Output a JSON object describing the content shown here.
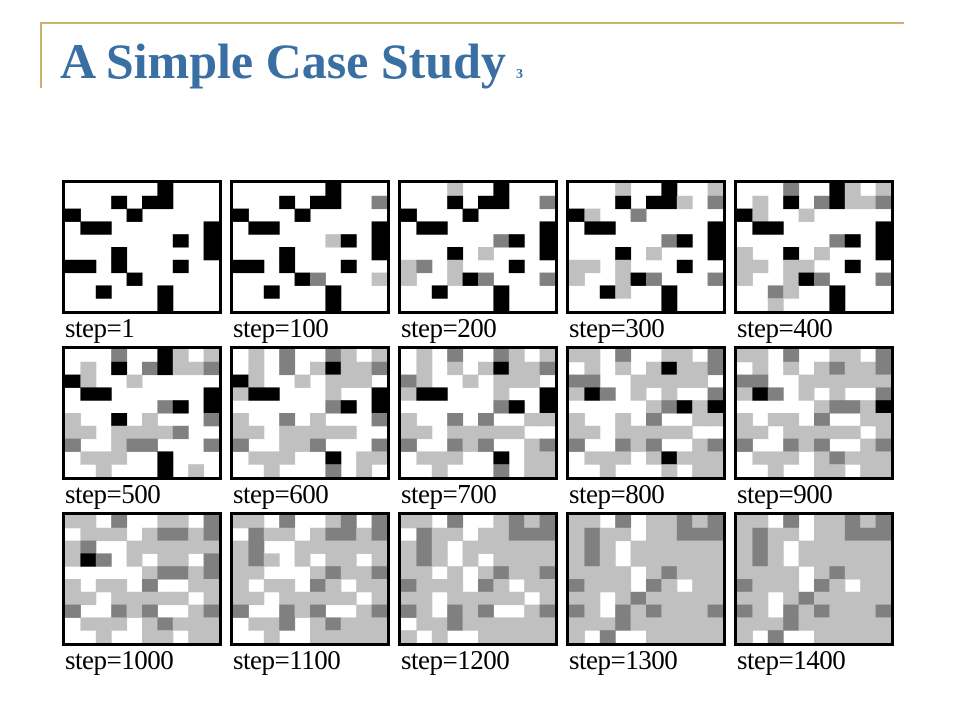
{
  "slide": {
    "title": "A Simple Case Study",
    "title_number": "3"
  },
  "figure": {
    "grid_size": 10,
    "colors": {
      "white": "#ffffff",
      "light": "#c0c0c0",
      "dark": "#808080",
      "black": "#000000",
      "border": "#000000"
    },
    "panels": [
      {
        "label": "step=1"
      },
      {
        "label": "step=100"
      },
      {
        "label": "step=200"
      },
      {
        "label": "step=300"
      },
      {
        "label": "step=400"
      },
      {
        "label": "step=500"
      },
      {
        "label": "step=600"
      },
      {
        "label": "step=700"
      },
      {
        "label": "step=800"
      },
      {
        "label": "step=900"
      },
      {
        "label": "step=1000"
      },
      {
        "label": "step=1100"
      },
      {
        "label": "step=1200"
      },
      {
        "label": "step=1300"
      },
      {
        "label": "step=1400"
      }
    ]
  },
  "colors": {
    "title": "#3a6fa3",
    "accent_lines": "#c8b46a"
  }
}
